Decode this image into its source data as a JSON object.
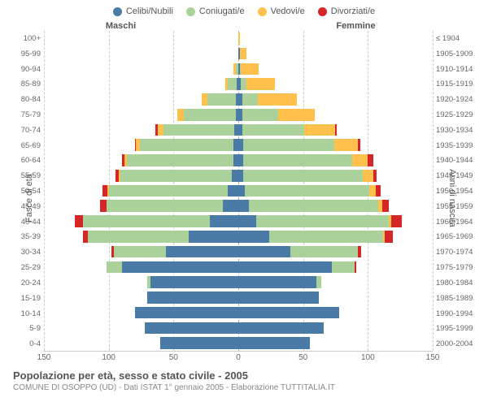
{
  "chart": {
    "type": "population-pyramid",
    "x_max": 150,
    "x_ticks": [
      150,
      100,
      50,
      0,
      50,
      100,
      150
    ],
    "background_color": "#ffffff",
    "grid_color": "#cccccc",
    "center_line_color": "#aaaaaa",
    "label_fontsize": 10,
    "legend": [
      {
        "label": "Celibi/Nubili",
        "color": "#4a7ba6"
      },
      {
        "label": "Coniugati/e",
        "color": "#abd19a"
      },
      {
        "label": "Vedovi/e",
        "color": "#ffc04c"
      },
      {
        "label": "Divorziati/e",
        "color": "#d62728"
      }
    ],
    "header_left": "Maschi",
    "header_right": "Femmine",
    "axis_left_title": "Fasce di età",
    "axis_right_title": "Anni di nascita",
    "age_groups": [
      "100+",
      "95-99",
      "90-94",
      "85-89",
      "80-84",
      "75-79",
      "70-74",
      "65-69",
      "60-64",
      "55-59",
      "50-54",
      "45-49",
      "40-44",
      "35-39",
      "30-34",
      "25-29",
      "20-24",
      "15-19",
      "10-14",
      "5-9",
      "0-4"
    ],
    "birth_years": [
      "≤ 1904",
      "1905-1909",
      "1910-1914",
      "1915-1919",
      "1920-1924",
      "1925-1929",
      "1930-1934",
      "1935-1939",
      "1940-1944",
      "1945-1949",
      "1950-1954",
      "1955-1959",
      "1960-1964",
      "1965-1969",
      "1970-1974",
      "1975-1979",
      "1980-1984",
      "1985-1989",
      "1990-1994",
      "1995-1999",
      "2000-2004"
    ],
    "male": [
      {
        "celibi": 0,
        "coniugati": 0,
        "vedovi": 0,
        "divorziati": 0
      },
      {
        "celibi": 0,
        "coniugati": 0,
        "vedovi": 0,
        "divorziati": 0
      },
      {
        "celibi": 0,
        "coniugati": 2,
        "vedovi": 2,
        "divorziati": 0
      },
      {
        "celibi": 1,
        "coniugati": 7,
        "vedovi": 2,
        "divorziati": 0
      },
      {
        "celibi": 2,
        "coniugati": 22,
        "vedovi": 4,
        "divorziati": 0
      },
      {
        "celibi": 2,
        "coniugati": 40,
        "vedovi": 5,
        "divorziati": 0
      },
      {
        "celibi": 3,
        "coniugati": 55,
        "vedovi": 4,
        "divorziati": 2
      },
      {
        "celibi": 4,
        "coniugati": 72,
        "vedovi": 3,
        "divorziati": 1
      },
      {
        "celibi": 4,
        "coniugati": 82,
        "vedovi": 2,
        "divorziati": 2
      },
      {
        "celibi": 5,
        "coniugati": 86,
        "vedovi": 1,
        "divorziati": 3
      },
      {
        "celibi": 8,
        "coniugati": 92,
        "vedovi": 1,
        "divorziati": 4
      },
      {
        "celibi": 12,
        "coniugati": 90,
        "vedovi": 0,
        "divorziati": 5
      },
      {
        "celibi": 22,
        "coniugati": 98,
        "vedovi": 0,
        "divorziati": 6
      },
      {
        "celibi": 38,
        "coniugati": 78,
        "vedovi": 0,
        "divorziati": 4
      },
      {
        "celibi": 56,
        "coniugati": 40,
        "vedovi": 0,
        "divorziati": 2
      },
      {
        "celibi": 90,
        "coniugati": 12,
        "vedovi": 0,
        "divorziati": 0
      },
      {
        "celibi": 68,
        "coniugati": 2,
        "vedovi": 0,
        "divorziati": 0
      },
      {
        "celibi": 70,
        "coniugati": 0,
        "vedovi": 0,
        "divorziati": 0
      },
      {
        "celibi": 80,
        "coniugati": 0,
        "vedovi": 0,
        "divorziati": 0
      },
      {
        "celibi": 72,
        "coniugati": 0,
        "vedovi": 0,
        "divorziati": 0
      },
      {
        "celibi": 60,
        "coniugati": 0,
        "vedovi": 0,
        "divorziati": 0
      }
    ],
    "female": [
      {
        "celibi": 0,
        "coniugati": 0,
        "vedovi": 1,
        "divorziati": 0
      },
      {
        "celibi": 1,
        "coniugati": 0,
        "vedovi": 5,
        "divorziati": 0
      },
      {
        "celibi": 1,
        "coniugati": 1,
        "vedovi": 14,
        "divorziati": 0
      },
      {
        "celibi": 2,
        "coniugati": 4,
        "vedovi": 22,
        "divorziati": 0
      },
      {
        "celibi": 3,
        "coniugati": 12,
        "vedovi": 30,
        "divorziati": 0
      },
      {
        "celibi": 3,
        "coniugati": 28,
        "vedovi": 28,
        "divorziati": 0
      },
      {
        "celibi": 3,
        "coniugati": 48,
        "vedovi": 24,
        "divorziati": 1
      },
      {
        "celibi": 4,
        "coniugati": 70,
        "vedovi": 18,
        "divorziati": 2
      },
      {
        "celibi": 4,
        "coniugati": 84,
        "vedovi": 12,
        "divorziati": 4
      },
      {
        "celibi": 4,
        "coniugati": 92,
        "vedovi": 8,
        "divorziati": 3
      },
      {
        "celibi": 5,
        "coniugati": 96,
        "vedovi": 5,
        "divorziati": 4
      },
      {
        "celibi": 8,
        "coniugati": 100,
        "vedovi": 3,
        "divorziati": 5
      },
      {
        "celibi": 14,
        "coniugati": 102,
        "vedovi": 2,
        "divorziati": 8
      },
      {
        "celibi": 24,
        "coniugati": 88,
        "vedovi": 1,
        "divorziati": 6
      },
      {
        "celibi": 40,
        "coniugati": 52,
        "vedovi": 0,
        "divorziati": 3
      },
      {
        "celibi": 72,
        "coniugati": 18,
        "vedovi": 0,
        "divorziati": 1
      },
      {
        "celibi": 60,
        "coniugati": 4,
        "vedovi": 0,
        "divorziati": 0
      },
      {
        "celibi": 62,
        "coniugati": 0,
        "vedovi": 0,
        "divorziati": 0
      },
      {
        "celibi": 78,
        "coniugati": 0,
        "vedovi": 0,
        "divorziati": 0
      },
      {
        "celibi": 66,
        "coniugati": 0,
        "vedovi": 0,
        "divorziati": 0
      },
      {
        "celibi": 55,
        "coniugati": 0,
        "vedovi": 0,
        "divorziati": 0
      }
    ]
  },
  "footer": {
    "title": "Popolazione per età, sesso e stato civile - 2005",
    "subtitle": "COMUNE DI OSOPPO (UD) - Dati ISTAT 1° gennaio 2005 - Elaborazione TUTTITALIA.IT"
  }
}
